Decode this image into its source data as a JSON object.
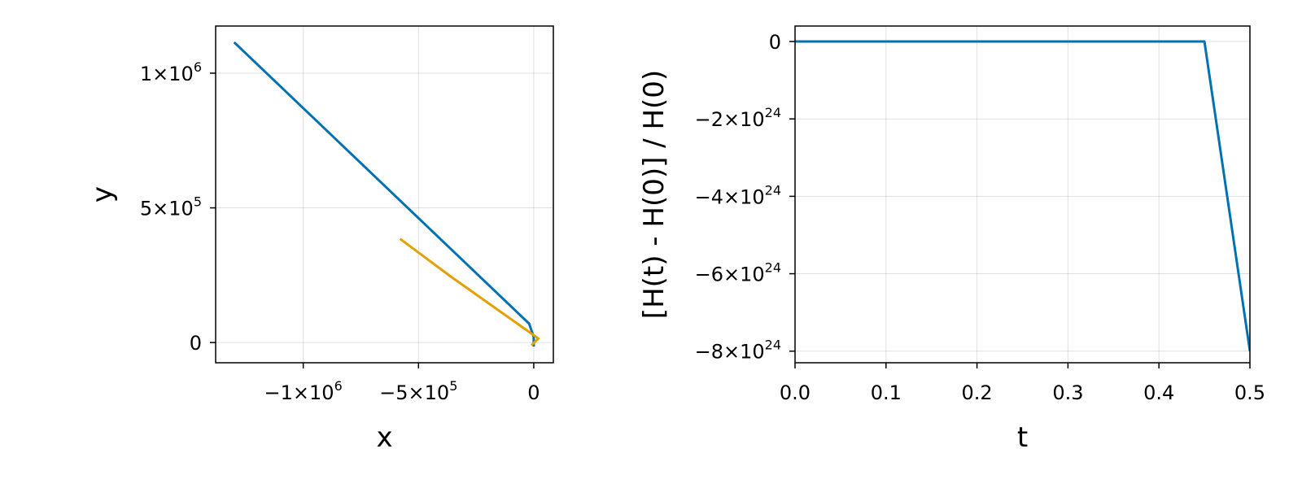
{
  "chart_data": [
    {
      "type": "line",
      "title": "",
      "xlabel": "x",
      "ylabel": "y",
      "xlim": [
        -1380000,
        85000
      ],
      "ylim": [
        -75000,
        1175000
      ],
      "xticks": [
        {
          "value": -1000000,
          "mant": "−1×10",
          "exp": "6"
        },
        {
          "value": -500000,
          "mant": "−5×10",
          "exp": "5"
        },
        {
          "value": 0,
          "mant": "0",
          "exp": ""
        }
      ],
      "yticks": [
        {
          "value": 0,
          "mant": "0",
          "exp": ""
        },
        {
          "value": 500000,
          "mant": "5×10",
          "exp": "5"
        },
        {
          "value": 1000000,
          "mant": "1×10",
          "exp": "6"
        }
      ],
      "grid": true,
      "series": [
        {
          "color": "#0072b2",
          "x": [
            -1300000,
            -20000,
            0,
            0
          ],
          "y": [
            1115000,
            70000,
            20000,
            -15000
          ]
        },
        {
          "color": "#e69f00",
          "x": [
            -580000,
            -360000,
            20000,
            -10000
          ],
          "y": [
            385000,
            245000,
            15000,
            -10000
          ]
        }
      ]
    },
    {
      "type": "line",
      "title": "",
      "xlabel": "t",
      "ylabel": "[H(t) - H(0)] / H(0)",
      "xlim": [
        0,
        0.5
      ],
      "ylim": [
        -8.3e+24,
        4e+23
      ],
      "xticks": [
        {
          "value": 0.0,
          "mant": "0.0",
          "exp": ""
        },
        {
          "value": 0.1,
          "mant": "0.1",
          "exp": ""
        },
        {
          "value": 0.2,
          "mant": "0.2",
          "exp": ""
        },
        {
          "value": 0.3,
          "mant": "0.3",
          "exp": ""
        },
        {
          "value": 0.4,
          "mant": "0.4",
          "exp": ""
        },
        {
          "value": 0.5,
          "mant": "0.5",
          "exp": ""
        }
      ],
      "yticks": [
        {
          "value": 0,
          "mant": "0",
          "exp": ""
        },
        {
          "value": -2e+24,
          "mant": "−2×10",
          "exp": "24"
        },
        {
          "value": -4e+24,
          "mant": "−4×10",
          "exp": "24"
        },
        {
          "value": -6e+24,
          "mant": "−6×10",
          "exp": "24"
        },
        {
          "value": -8e+24,
          "mant": "−8×10",
          "exp": "24"
        }
      ],
      "grid": true,
      "series": [
        {
          "color": "#0072b2",
          "x": [
            0,
            0.45,
            0.5
          ],
          "y": [
            0,
            0,
            -8e+24
          ]
        }
      ]
    }
  ]
}
